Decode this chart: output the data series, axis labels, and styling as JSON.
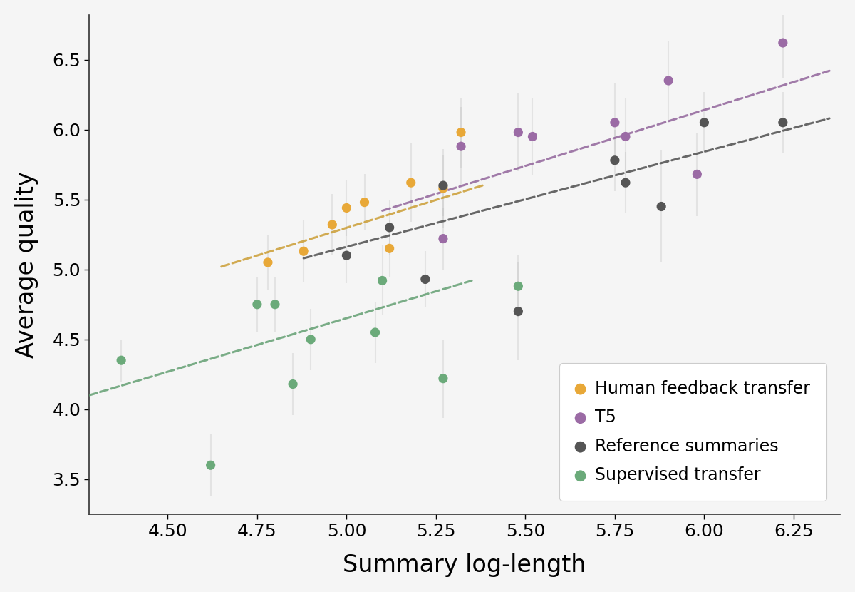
{
  "xlabel": "Summary log-length",
  "ylabel": "Average quality",
  "xlim": [
    4.28,
    6.38
  ],
  "ylim": [
    3.25,
    6.82
  ],
  "xticks": [
    4.5,
    4.75,
    5.0,
    5.25,
    5.5,
    5.75,
    6.0,
    6.25
  ],
  "yticks": [
    3.5,
    4.0,
    4.5,
    5.0,
    5.5,
    6.0,
    6.5
  ],
  "series": [
    {
      "name": "Human feedback transfer",
      "color": "#E8A838",
      "trend_color": "#C89828",
      "x": [
        4.78,
        4.88,
        4.96,
        5.0,
        5.05,
        5.12,
        5.18,
        5.27,
        5.32
      ],
      "y": [
        5.05,
        5.13,
        5.32,
        5.44,
        5.48,
        5.15,
        5.62,
        5.58,
        5.98
      ],
      "yerr": [
        0.2,
        0.22,
        0.22,
        0.2,
        0.2,
        0.2,
        0.28,
        0.28,
        0.25
      ],
      "trend_x": [
        4.65,
        5.38
      ],
      "trend_y": [
        5.02,
        5.6
      ]
    },
    {
      "name": "T5",
      "color": "#9B6BA5",
      "trend_color": "#8B5B95",
      "x": [
        5.27,
        5.32,
        5.48,
        5.52,
        5.75,
        5.78,
        5.9,
        5.98,
        6.22
      ],
      "y": [
        5.22,
        5.88,
        5.98,
        5.95,
        6.05,
        5.95,
        6.35,
        5.68,
        6.62
      ],
      "yerr": [
        0.22,
        0.28,
        0.28,
        0.28,
        0.28,
        0.28,
        0.28,
        0.3,
        0.25
      ],
      "trend_x": [
        5.1,
        6.35
      ],
      "trend_y": [
        5.42,
        6.42
      ]
    },
    {
      "name": "Reference summaries",
      "color": "#555555",
      "trend_color": "#444444",
      "x": [
        5.0,
        5.12,
        5.22,
        5.27,
        5.48,
        5.75,
        5.78,
        5.88,
        6.0,
        6.22
      ],
      "y": [
        5.1,
        5.3,
        4.93,
        5.6,
        4.7,
        5.78,
        5.62,
        5.45,
        6.05,
        6.05
      ],
      "yerr": [
        0.2,
        0.2,
        0.2,
        0.22,
        0.35,
        0.22,
        0.22,
        0.4,
        0.22,
        0.22
      ],
      "trend_x": [
        4.88,
        6.35
      ],
      "trend_y": [
        5.08,
        6.08
      ]
    },
    {
      "name": "Supervised transfer",
      "color": "#6BAA7A",
      "trend_color": "#5A9A6A",
      "x": [
        4.37,
        4.62,
        4.75,
        4.8,
        4.85,
        4.9,
        5.08,
        5.1,
        5.27,
        5.48
      ],
      "y": [
        4.35,
        3.6,
        4.75,
        4.75,
        4.18,
        4.5,
        4.55,
        4.92,
        4.22,
        4.88
      ],
      "yerr": [
        0.15,
        0.22,
        0.2,
        0.2,
        0.22,
        0.22,
        0.22,
        0.25,
        0.28,
        0.22
      ],
      "trend_x": [
        4.28,
        5.35
      ],
      "trend_y": [
        4.1,
        4.92
      ]
    }
  ],
  "background_color": "#F5F5F5",
  "plot_bg_color": "#F5F5F5",
  "legend_fontsize": 17,
  "axis_label_fontsize": 24,
  "tick_fontsize": 18,
  "dot_size": 90,
  "errorbar_alpha": 0.3,
  "errorbar_linewidth": 1.5
}
